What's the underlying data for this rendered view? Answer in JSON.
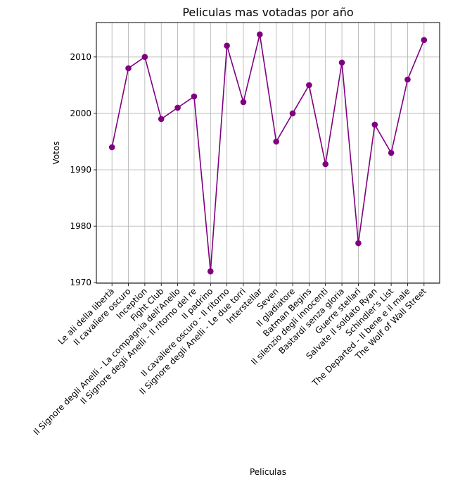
{
  "chart_data": {
    "type": "line",
    "title": "Peliculas mas votadas por año",
    "xlabel": "Peliculas",
    "ylabel": "Votos",
    "categories": [
      "Le ali della libertà",
      "Il cavaliere oscuro",
      "Inception",
      "Fight Club",
      "Il Signore degli Anelli - La compagnia dell'Anello",
      "Il Signore degli Anelli - Il ritorno del re",
      "Il padrino",
      "Il cavaliere oscuro - Il ritorno",
      "Il Signore degli Anelli - Le due torri",
      "Interstellar",
      "Seven",
      "Il gladiatore",
      "Batman Begins",
      "Il silenzio degli innocenti",
      "Bastardi senza gloria",
      "Guerre stellari",
      "Salvate il soldato Ryan",
      "Schindler's List",
      "The Departed - Il bene e il male",
      "The Wolf of Wall Street"
    ],
    "values": [
      1994,
      2008,
      2010,
      1999,
      2001,
      2003,
      1972,
      2012,
      2002,
      2014,
      1995,
      2000,
      2005,
      1991,
      2009,
      1977,
      1998,
      1993,
      2006,
      2013
    ],
    "yticks": [
      1970,
      1980,
      1990,
      2000,
      2010
    ],
    "ylim": [
      1969.9,
      2016.1
    ],
    "grid": true,
    "color": "#800080"
  }
}
